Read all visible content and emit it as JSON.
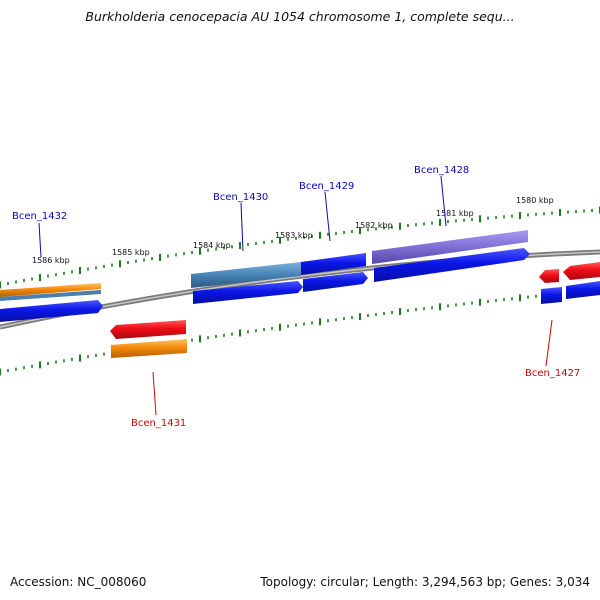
{
  "title": "Burkholderia cenocepacia AU 1054 chromosome 1, complete sequ...",
  "footer": {
    "accession": "Accession: NC_008060",
    "topology": "Topology: circular; Length: 3,294,563 bp; Genes: 3,034"
  },
  "ticks": [
    "1586 kbp",
    "1585 kbp",
    "1584 kbp",
    "1583 kbp",
    "1582 kbp",
    "1581 kbp",
    "1580 kbp"
  ],
  "genes": {
    "bcen_1432": "Bcen_1432",
    "bcen_1431": "Bcen_1431",
    "bcen_1430": "Bcen_1430",
    "bcen_1429": "Bcen_1429",
    "bcen_1428": "Bcen_1428",
    "bcen_1427": "Bcen_1427"
  },
  "colors": {
    "forward_cds": "#0a16e8",
    "reverse_cds": "#ee0b16",
    "orange": "#f58a0a",
    "steelblue": "#4682b4",
    "slateblue": "#7e6fd6",
    "backbone": "#888888",
    "tick": "#1c7a1c",
    "label_forward": "#0a0ab4",
    "label_reverse": "#c80a0a"
  }
}
